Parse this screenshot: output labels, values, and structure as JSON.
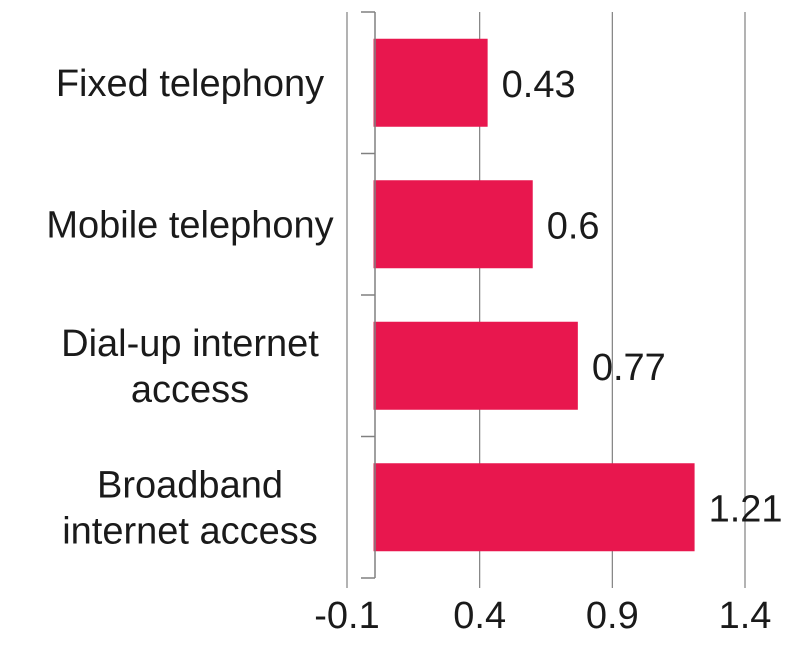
{
  "chart_data": {
    "type": "bar",
    "orientation": "horizontal",
    "categories": [
      [
        "Fixed telephony"
      ],
      [
        "Mobile telephony"
      ],
      [
        "Dial-up internet",
        "access"
      ],
      [
        "Broadband",
        "internet access"
      ]
    ],
    "values": [
      0.43,
      0.6,
      0.77,
      1.21
    ],
    "data_labels": [
      "0.43",
      "0.6",
      "0.77",
      "1.21"
    ],
    "xticks": [
      -0.1,
      0.4,
      0.9,
      1.4
    ],
    "xtick_labels": [
      "-0.1",
      "0.4",
      "0.9",
      "1.4"
    ],
    "xlim": [
      -0.1,
      1.4
    ],
    "title": "",
    "xlabel": "",
    "ylabel": "",
    "grid": "vertical",
    "legend": "none",
    "colors": {
      "bar": "#E8174E",
      "grid": "#808080",
      "axis": "#808080",
      "text": "#1a1a1a"
    }
  }
}
